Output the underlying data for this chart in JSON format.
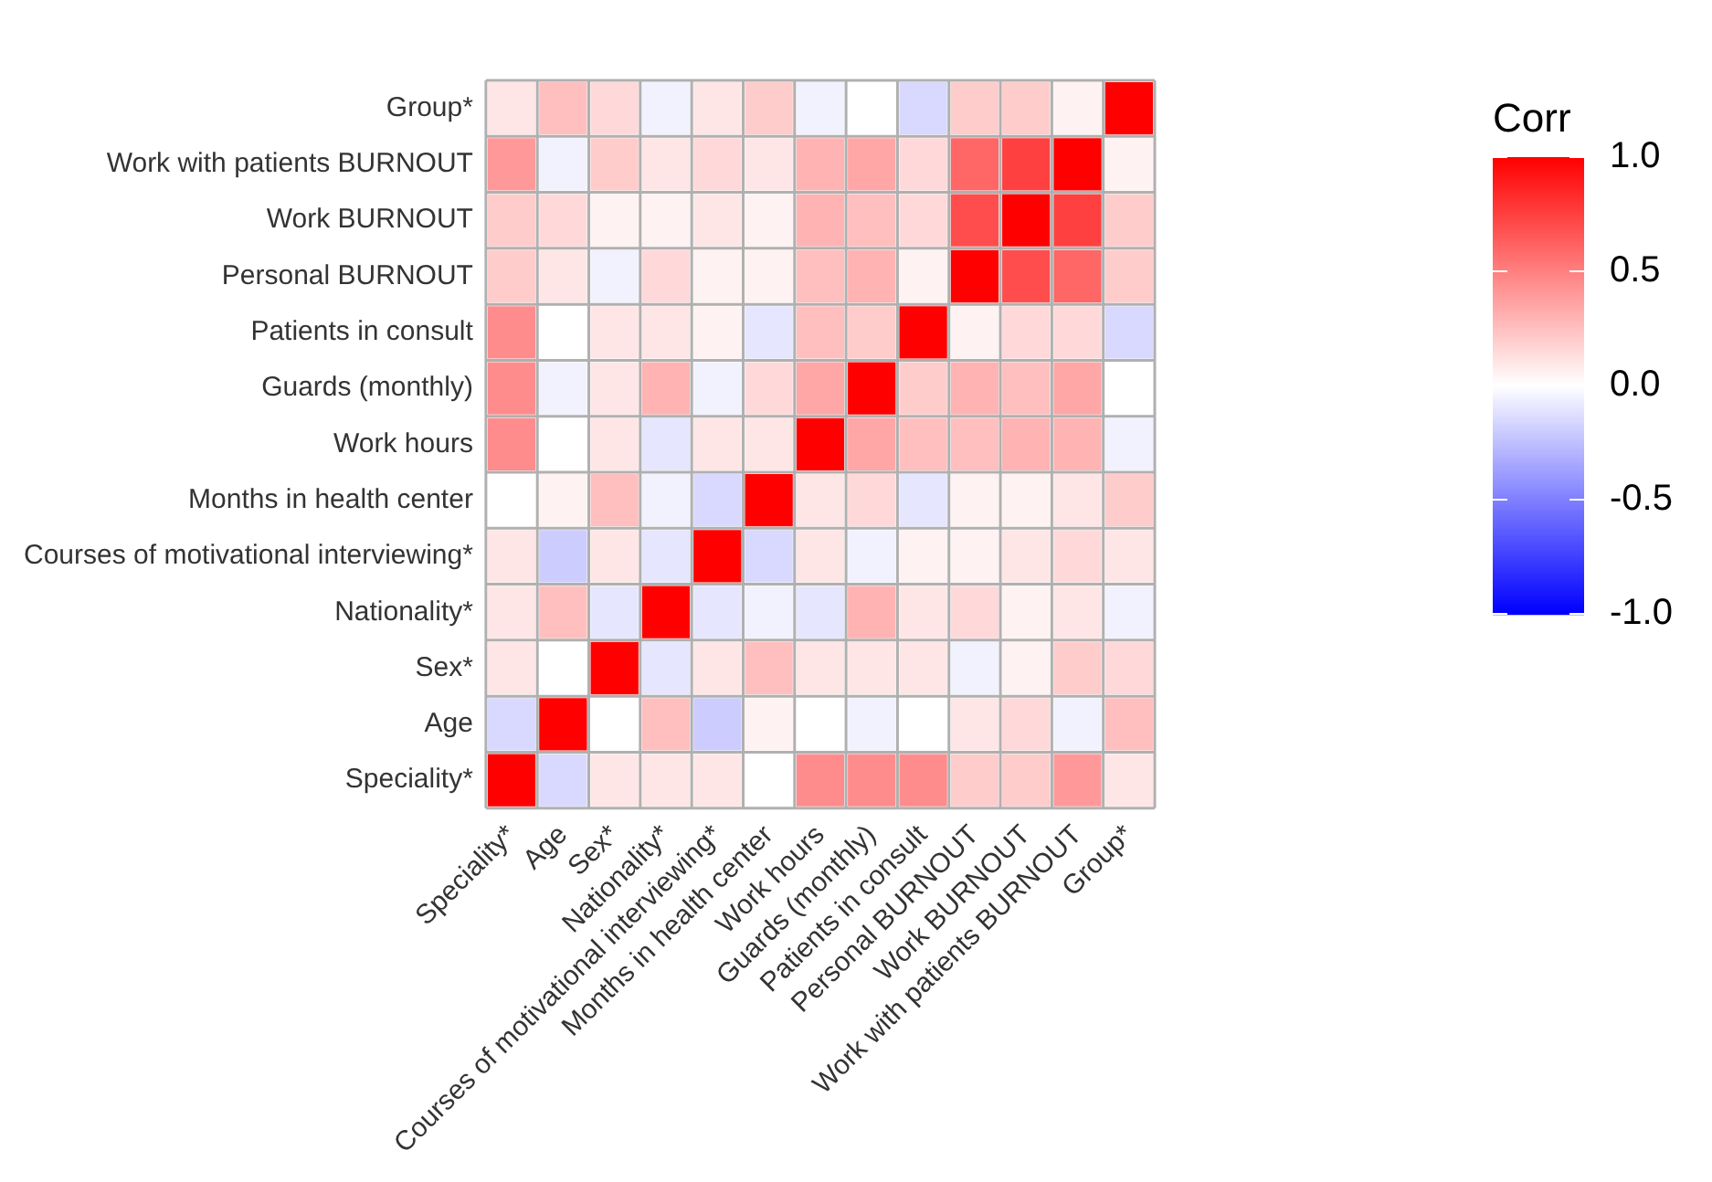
{
  "chart_data": {
    "type": "heatmap",
    "clabel": "Corr",
    "categories": [
      "Speciality*",
      "Age",
      "Sex*",
      "Nationality*",
      "Courses of motivational interviewing*",
      "Months in health center",
      "Work hours",
      "Guards (monthly)",
      "Patients in consult",
      "Personal BURNOUT",
      "Work BURNOUT",
      "Work with patients BURNOUT",
      "Group*"
    ],
    "y_categories": [
      "Group*",
      "Work with patients BURNOUT",
      "Work BURNOUT",
      "Personal BURNOUT",
      "Patients in consult",
      "Guards (monthly)",
      "Work hours",
      "Months in health center",
      "Courses of motivational interviewing*",
      "Nationality*",
      "Sex*",
      "Age",
      "Speciality*"
    ],
    "cells": [
      [
        0.1,
        0.25,
        0.15,
        -0.05,
        0.1,
        0.2,
        -0.05,
        0,
        -0.15,
        0.2,
        0.2,
        0.05,
        1
      ],
      [
        0.4,
        -0.05,
        0.2,
        0.1,
        0.15,
        0.1,
        0.3,
        0.35,
        0.15,
        0.6,
        0.75,
        1,
        0.05
      ],
      [
        0.2,
        0.15,
        0.05,
        0.05,
        0.1,
        0.05,
        0.3,
        0.25,
        0.15,
        0.7,
        1,
        0.75,
        0.2
      ],
      [
        0.2,
        0.1,
        -0.05,
        0.15,
        0.05,
        0.05,
        0.25,
        0.3,
        0.05,
        1,
        0.7,
        0.6,
        0.2
      ],
      [
        0.45,
        0,
        0.1,
        0.1,
        0.05,
        -0.1,
        0.25,
        0.2,
        1,
        0.05,
        0.15,
        0.15,
        -0.15
      ],
      [
        0.45,
        -0.05,
        0.1,
        0.3,
        -0.05,
        0.15,
        0.35,
        1,
        0.2,
        0.3,
        0.25,
        0.35,
        0
      ],
      [
        0.45,
        0,
        0.1,
        -0.1,
        0.1,
        0.1,
        1,
        0.35,
        0.25,
        0.25,
        0.3,
        0.3,
        -0.05
      ],
      [
        0,
        0.05,
        0.25,
        -0.05,
        -0.15,
        1,
        0.1,
        0.15,
        -0.1,
        0.05,
        0.05,
        0.1,
        0.2
      ],
      [
        0.1,
        -0.2,
        0.1,
        -0.1,
        1,
        -0.15,
        0.1,
        -0.05,
        0.05,
        0.05,
        0.1,
        0.15,
        0.1
      ],
      [
        0.1,
        0.25,
        -0.1,
        1,
        -0.1,
        -0.05,
        -0.1,
        0.3,
        0.1,
        0.15,
        0.05,
        0.1,
        -0.05
      ],
      [
        0.1,
        0,
        1,
        -0.1,
        0.1,
        0.25,
        0.1,
        0.1,
        0.1,
        -0.05,
        0.05,
        0.2,
        0.15
      ],
      [
        -0.15,
        1,
        0,
        0.25,
        -0.2,
        0.05,
        0,
        -0.05,
        0,
        0.1,
        0.15,
        -0.05,
        0.25
      ],
      [
        1,
        -0.15,
        0.1,
        0.1,
        0.1,
        0,
        0.45,
        0.45,
        0.45,
        0.2,
        0.2,
        0.4,
        0.1
      ]
    ],
    "clim": [
      -1,
      1
    ],
    "cticks": [
      {
        "value": 1,
        "label": "1.0"
      },
      {
        "value": 0.5,
        "label": "0.5"
      },
      {
        "value": 0,
        "label": "0.0"
      },
      {
        "value": -0.5,
        "label": "-0.5"
      },
      {
        "value": -1,
        "label": "-1.0"
      }
    ]
  }
}
